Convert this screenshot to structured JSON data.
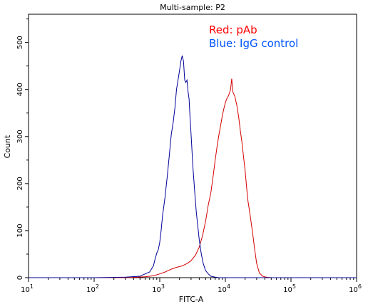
{
  "chart_data": {
    "type": "line",
    "title": "Multi-sample: P2",
    "xlabel": "FITC-A",
    "ylabel": "Count",
    "xscale": "log",
    "xlim": [
      10,
      1000000
    ],
    "ylim": [
      0,
      560
    ],
    "x_ticks": [
      {
        "value": 10,
        "base": "10",
        "exp": "1"
      },
      {
        "value": 100,
        "base": "10",
        "exp": "2"
      },
      {
        "value": 1000,
        "base": "10",
        "exp": "3"
      },
      {
        "value": 10000,
        "base": "10",
        "exp": "4"
      },
      {
        "value": 100000,
        "base": "10",
        "exp": "5"
      },
      {
        "value": 1000000,
        "base": "10",
        "exp": "6"
      }
    ],
    "y_ticks": [
      {
        "value": 0,
        "label": "0"
      },
      {
        "value": 100,
        "label": "100"
      },
      {
        "value": 200,
        "label": "200"
      },
      {
        "value": 300,
        "label": "300"
      },
      {
        "value": 400,
        "label": "400"
      },
      {
        "value": 500,
        "label": "500"
      }
    ],
    "grid": false,
    "legend": [
      {
        "label": "Red: pAb",
        "color": "#ff0000"
      },
      {
        "label": "Blue: IgG control",
        "color": "#0055ff"
      }
    ],
    "series": [
      {
        "color": "#d40000",
        "x": [
          10,
          100,
          300,
          600,
          800,
          1000,
          1200,
          1500,
          1800,
          2200,
          2600,
          3000,
          3500,
          4000,
          4500,
          5000,
          5500,
          6000,
          6500,
          7000,
          7500,
          8000,
          8500,
          9000,
          9500,
          10000,
          10500,
          11000,
          11500,
          12000,
          12500,
          13000,
          14000,
          15000,
          16000,
          17000,
          18000,
          19000,
          20000,
          21000,
          22000,
          24000,
          26000,
          28000,
          30000,
          33000,
          37000,
          42000,
          50000,
          70000,
          100000,
          300000,
          1000000
        ],
        "y": [
          0,
          0,
          0,
          2,
          4,
          8,
          12,
          18,
          22,
          25,
          30,
          36,
          48,
          65,
          90,
          120,
          155,
          180,
          215,
          250,
          280,
          305,
          325,
          345,
          360,
          372,
          380,
          385,
          392,
          400,
          423,
          395,
          385,
          365,
          340,
          310,
          285,
          255,
          228,
          195,
          165,
          130,
          95,
          60,
          30,
          10,
          3,
          1,
          0,
          0,
          0,
          0,
          0
        ]
      },
      {
        "color": "#000099",
        "x": [
          10,
          100,
          300,
          500,
          600,
          700,
          800,
          850,
          900,
          950,
          1000,
          1050,
          1100,
          1200,
          1300,
          1400,
          1500,
          1600,
          1700,
          1800,
          1900,
          2000,
          2100,
          2200,
          2300,
          2400,
          2500,
          2600,
          2700,
          2800,
          2900,
          3000,
          3200,
          3400,
          3600,
          3800,
          4000,
          4300,
          4600,
          5000,
          5500,
          6000,
          7000,
          8000,
          10000,
          100000,
          1000000
        ],
        "y": [
          0,
          0,
          1,
          3,
          8,
          12,
          25,
          40,
          52,
          60,
          75,
          100,
          130,
          170,
          215,
          260,
          305,
          330,
          360,
          400,
          420,
          440,
          460,
          472,
          460,
          420,
          415,
          420,
          395,
          380,
          340,
          305,
          235,
          185,
          140,
          110,
          80,
          50,
          30,
          15,
          8,
          3,
          1,
          0,
          0,
          0,
          0
        ]
      }
    ]
  }
}
